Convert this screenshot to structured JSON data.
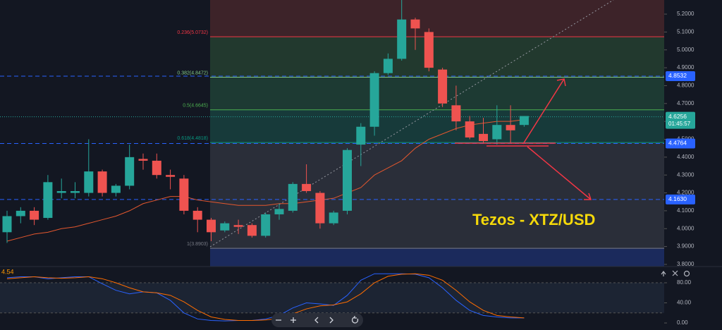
{
  "chart_data": [
    {
      "type": "candlestick",
      "title": "Tezos - XTZ/USD",
      "up_color": "#26a69a",
      "down_color": "#ef5350",
      "open": [
        3.98,
        4.07,
        4.1,
        4.06,
        4.2,
        4.2,
        4.2,
        4.32,
        4.2,
        4.24,
        4.39,
        4.38,
        4.3,
        4.28,
        4.1,
        4.05,
        3.99,
        4.02,
        4.02,
        3.96,
        4.08,
        4.1,
        4.25,
        4.2,
        4.03,
        4.1,
        4.47,
        4.57,
        4.87,
        4.95,
        5.17,
        5.1,
        4.89,
        4.69,
        4.6,
        4.53,
        4.5,
        4.58,
        4.58
      ],
      "high": [
        4.1,
        4.12,
        4.12,
        4.3,
        4.28,
        4.26,
        4.5,
        4.33,
        4.25,
        4.47,
        4.42,
        4.42,
        4.33,
        4.3,
        4.12,
        4.06,
        4.04,
        4.05,
        4.03,
        4.09,
        4.14,
        4.26,
        4.36,
        4.21,
        4.1,
        4.45,
        4.59,
        4.88,
        4.98,
        5.28,
        5.18,
        5.12,
        4.9,
        4.8,
        4.63,
        4.62,
        4.69,
        4.69,
        4.63
      ],
      "low": [
        3.92,
        4.03,
        4.02,
        4.05,
        4.17,
        4.17,
        4.18,
        4.18,
        4.18,
        4.22,
        4.33,
        4.28,
        4.22,
        4.08,
        3.98,
        3.93,
        3.98,
        3.97,
        3.95,
        3.95,
        4.05,
        4.09,
        4.2,
        4.0,
        4.02,
        4.08,
        4.35,
        4.52,
        4.86,
        4.94,
        5.0,
        4.88,
        4.68,
        4.55,
        4.5,
        4.48,
        4.47,
        4.48,
        4.57
      ],
      "close": [
        4.07,
        4.1,
        4.05,
        4.26,
        4.21,
        4.21,
        4.32,
        4.2,
        4.24,
        4.4,
        4.38,
        4.3,
        4.29,
        4.1,
        4.05,
        3.98,
        4.03,
        4.01,
        3.96,
        4.08,
        4.11,
        4.25,
        4.21,
        4.03,
        4.09,
        4.44,
        4.57,
        4.87,
        4.95,
        5.17,
        5.12,
        4.9,
        4.7,
        4.6,
        4.51,
        4.49,
        4.58,
        4.55,
        4.63
      ],
      "moving_average": {
        "color": "#e4572e",
        "values": [
          3.93,
          3.95,
          3.97,
          3.98,
          4.0,
          4.01,
          4.03,
          4.05,
          4.07,
          4.1,
          4.14,
          4.16,
          4.18,
          4.18,
          4.16,
          4.15,
          4.14,
          4.13,
          4.13,
          4.13,
          4.14,
          4.14,
          4.15,
          4.16,
          4.17,
          4.2,
          4.23,
          4.3,
          4.34,
          4.38,
          4.45,
          4.5,
          4.53,
          4.56,
          4.58,
          4.59,
          4.6,
          4.6,
          4.61
        ]
      },
      "ylim": [
        3.788,
        5.279
      ],
      "yticks": [
        {
          "value": 3.8,
          "label": "3.8000"
        },
        {
          "value": 3.9,
          "label": "3.9000"
        },
        {
          "value": 4.0,
          "label": "4.0000"
        },
        {
          "value": 4.1,
          "label": "4.1000"
        },
        {
          "value": 4.2,
          "label": "4.2000"
        },
        {
          "value": 4.3,
          "label": "4.3000"
        },
        {
          "value": 4.4,
          "label": "4.4000"
        },
        {
          "value": 4.5,
          "label": "4.5000"
        },
        {
          "value": 4.6,
          "label": "4.6000"
        },
        {
          "value": 4.7,
          "label": "4.7000"
        },
        {
          "value": 4.8,
          "label": "4.8000"
        },
        {
          "value": 4.9,
          "label": "4.9000"
        },
        {
          "value": 5.0,
          "label": "5.0000"
        },
        {
          "value": 5.1,
          "label": "5.1000"
        },
        {
          "value": 5.2,
          "label": "5.2000"
        }
      ],
      "fib_levels": [
        {
          "value": 5.0732,
          "label": "0.236(5.0732)",
          "color": "#f23645",
          "fill": "#22392e"
        },
        {
          "value": 4.8472,
          "label": "0.382(4.8472)",
          "color": "#81c784",
          "fill": "#1d3a33"
        },
        {
          "value": 4.6645,
          "label": "0.5(4.6645)",
          "color": "#4caf50",
          "fill": "#173a3a"
        },
        {
          "value": 4.4818,
          "label": "0.618(4.4818)",
          "color": "#089981",
          "fill": "#2a2e39"
        },
        {
          "value": 3.8903,
          "label": "1(3.8903)",
          "color": "#787b86",
          "fill": "#1b2a5c"
        }
      ],
      "fib_top_fill": "#3d2329",
      "price_lines": [
        {
          "value": 4.8532,
          "label": "4.8532"
        },
        {
          "value": 4.4764,
          "label": "4.4764"
        },
        {
          "value": 4.163,
          "label": "4.1630"
        }
      ],
      "price_line_color": "#2962ff",
      "current_price": {
        "value": 4.6256,
        "label": "4.6256",
        "countdown": "01:45:57"
      }
    },
    {
      "type": "line",
      "legend_value": "4.54",
      "series": [
        {
          "color": "#2962ff",
          "values": [
            90,
            92,
            92,
            88,
            90,
            92,
            92,
            78,
            65,
            58,
            62,
            60,
            45,
            20,
            8,
            5,
            4,
            5,
            5,
            8,
            15,
            30,
            40,
            38,
            35,
            55,
            85,
            98,
            98,
            98,
            97,
            90,
            70,
            45,
            25,
            15,
            12,
            10,
            10
          ]
        },
        {
          "color": "#ff6d00",
          "values": [
            88,
            90,
            92,
            90,
            89,
            90,
            92,
            88,
            80,
            70,
            62,
            60,
            55,
            42,
            25,
            12,
            7,
            5,
            5,
            6,
            9,
            18,
            28,
            34,
            36,
            42,
            58,
            80,
            93,
            97,
            98,
            95,
            85,
            65,
            42,
            25,
            15,
            12,
            10
          ]
        }
      ],
      "band": [
        20,
        80
      ],
      "ylim": [
        -14,
        109.5
      ],
      "yticks": [
        {
          "value": 0,
          "label": "0.00"
        },
        {
          "value": 40,
          "label": "40.00"
        },
        {
          "value": 80,
          "label": "80.00"
        }
      ]
    }
  ]
}
